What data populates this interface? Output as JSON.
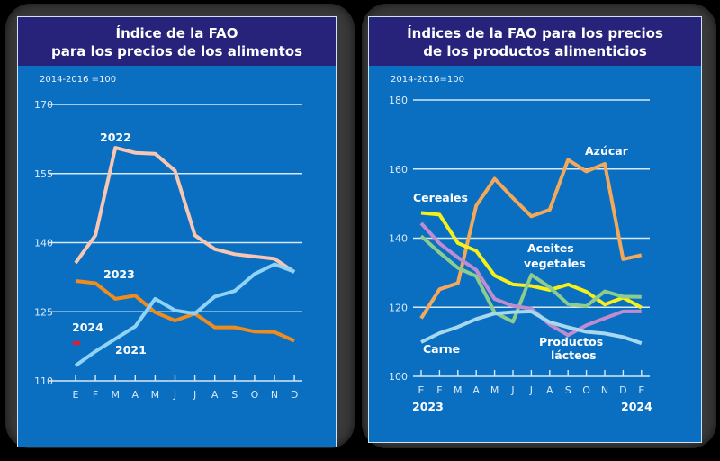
{
  "chart_data": [
    {
      "type": "line",
      "title": "Índice de la FAO para los precios de los alimentos",
      "subtitle": "2014-2016 =100",
      "xlabel": "",
      "ylabel": "",
      "ylim": [
        110,
        170
      ],
      "yticks": [
        "170",
        "155",
        "140",
        "125",
        "110"
      ],
      "ytick_values": [
        170,
        155,
        140,
        125,
        110
      ],
      "categories": [
        "E",
        "F",
        "M",
        "A",
        "M",
        "J",
        "J",
        "A",
        "S",
        "O",
        "N",
        "D"
      ],
      "grid": true,
      "series": [
        {
          "name": "2022",
          "color": "#f7c7b4",
          "values": [
            135.6,
            141.6,
            160.6,
            159.5,
            159.3,
            155.6,
            141.6,
            138.6,
            137.5,
            137.0,
            136.5,
            133.6
          ]
        },
        {
          "name": "2023",
          "color": "#f08c1e",
          "values": [
            131.7,
            131.2,
            127.8,
            128.5,
            124.9,
            123.1,
            124.6,
            121.6,
            121.6,
            120.7,
            120.6,
            118.7
          ]
        },
        {
          "name": "2021",
          "color": "#8fd3f7",
          "values": [
            113.3,
            116.4,
            119.1,
            121.8,
            127.8,
            125.3,
            124.6,
            128.3,
            129.5,
            133.2,
            135.3,
            133.7
          ]
        },
        {
          "name": "2024",
          "color": "#e8192c",
          "values": [
            118.0
          ]
        }
      ]
    },
    {
      "type": "line",
      "title": "Índices de la FAO para los precios de los productos alimenticios",
      "subtitle": "2014-2016=100",
      "xlabel": "",
      "ylabel": "",
      "ylim": [
        100,
        180
      ],
      "yticks": [
        "180",
        "160",
        "140",
        "120",
        "100"
      ],
      "ytick_values": [
        180,
        160,
        140,
        120,
        100
      ],
      "categories": [
        "E",
        "F",
        "M",
        "A",
        "M",
        "J",
        "J",
        "A",
        "S",
        "O",
        "N",
        "D",
        "E"
      ],
      "year_labels": {
        "start": "2023",
        "end": "2024"
      },
      "grid": true,
      "series": [
        {
          "name": "Azúcar",
          "color": "#f4a95a",
          "values": [
            116.8,
            125.2,
            127.0,
            149.4,
            157.2,
            151.6,
            146.3,
            148.2,
            162.7,
            159.3,
            161.5,
            133.9,
            135.1
          ]
        },
        {
          "name": "Cereales",
          "color": "#f5ef1a",
          "values": [
            147.3,
            146.8,
            138.6,
            136.3,
            129.2,
            126.6,
            126.2,
            125.0,
            126.6,
            124.5,
            120.8,
            122.8,
            119.9
          ]
        },
        {
          "name": "Aceites vegetales",
          "color": "#8ccc8c",
          "values": [
            140.6,
            135.8,
            131.4,
            129.0,
            118.5,
            115.8,
            129.4,
            125.8,
            120.9,
            120.3,
            124.6,
            123.1,
            123.0
          ]
        },
        {
          "name": "Productos lácteos",
          "color": "#c08cd0",
          "values": [
            144.3,
            138.5,
            134.4,
            130.8,
            122.4,
            120.4,
            119.6,
            115.0,
            111.9,
            114.8,
            116.8,
            118.8,
            118.8
          ]
        },
        {
          "name": "Carne",
          "color": "#a8d8ee",
          "values": [
            109.9,
            112.5,
            114.3,
            116.6,
            118.2,
            118.6,
            118.8,
            115.7,
            114.2,
            112.9,
            112.4,
            111.4,
            109.6
          ]
        }
      ]
    }
  ]
}
